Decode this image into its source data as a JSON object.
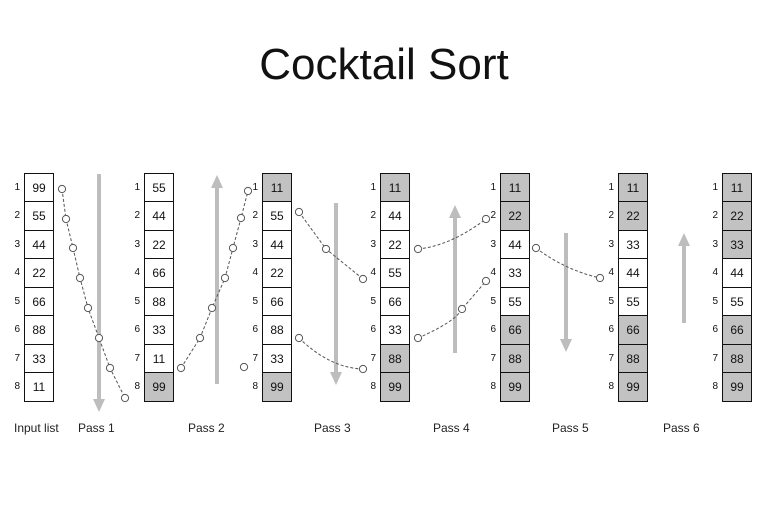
{
  "title": "Cocktail Sort",
  "columns": [
    {
      "values": [
        "99",
        "55",
        "44",
        "22",
        "66",
        "88",
        "33",
        "11"
      ],
      "shaded": [
        false,
        false,
        false,
        false,
        false,
        false,
        false,
        false
      ]
    },
    {
      "values": [
        "55",
        "44",
        "22",
        "66",
        "88",
        "33",
        "11",
        "99"
      ],
      "shaded": [
        false,
        false,
        false,
        false,
        false,
        false,
        false,
        true
      ]
    },
    {
      "values": [
        "11",
        "55",
        "44",
        "22",
        "66",
        "88",
        "33",
        "99"
      ],
      "shaded": [
        true,
        false,
        false,
        false,
        false,
        false,
        false,
        true
      ]
    },
    {
      "values": [
        "11",
        "44",
        "22",
        "55",
        "66",
        "33",
        "88",
        "99"
      ],
      "shaded": [
        true,
        false,
        false,
        false,
        false,
        false,
        true,
        true
      ]
    },
    {
      "values": [
        "11",
        "22",
        "44",
        "33",
        "55",
        "66",
        "88",
        "99"
      ],
      "shaded": [
        true,
        true,
        false,
        false,
        false,
        true,
        true,
        true
      ]
    },
    {
      "values": [
        "11",
        "22",
        "33",
        "44",
        "55",
        "66",
        "88",
        "99"
      ],
      "shaded": [
        true,
        true,
        false,
        false,
        false,
        true,
        true,
        true
      ]
    },
    {
      "values": [
        "11",
        "22",
        "33",
        "44",
        "55",
        "66",
        "88",
        "99"
      ],
      "shaded": [
        true,
        true,
        true,
        false,
        false,
        true,
        true,
        true
      ]
    }
  ],
  "row_indices": [
    "1",
    "2",
    "3",
    "4",
    "5",
    "6",
    "7",
    "8"
  ],
  "labels": [
    "Input list",
    "Pass 1",
    "Pass 2",
    "Pass 3",
    "Pass 4",
    "Pass 5",
    "Pass 6"
  ],
  "colors": {
    "shaded_cell": "#c2c2c2",
    "arrow": "#bdbdbd",
    "border": "#111111"
  }
}
